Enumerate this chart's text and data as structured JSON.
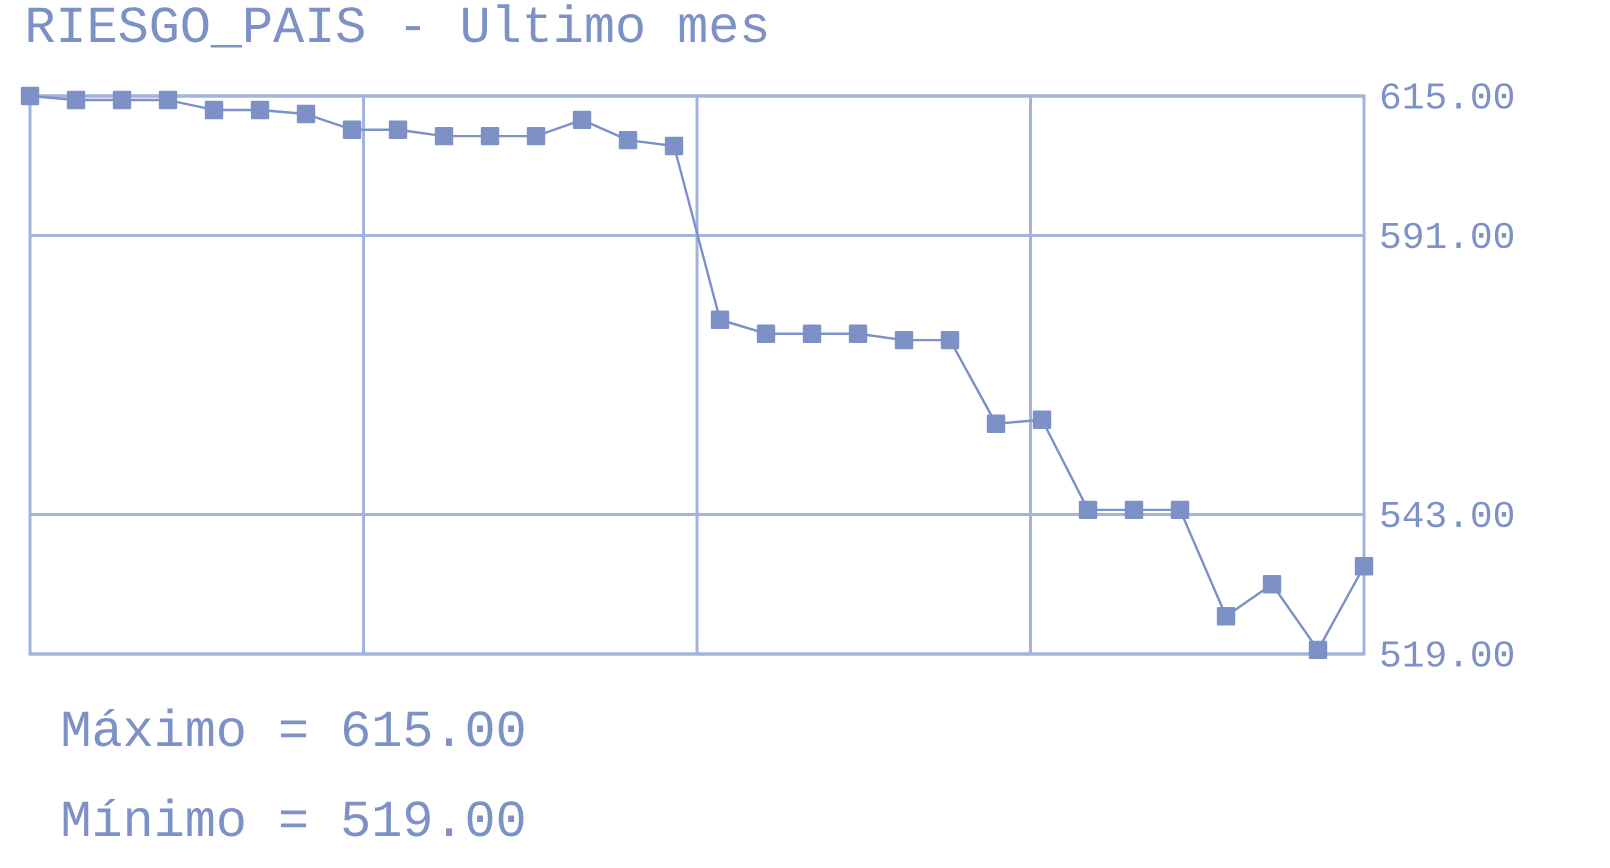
{
  "chart_data": {
    "type": "line",
    "title": "RIESGO_PAIS - Ultimo mes",
    "categories": [
      null,
      null,
      null,
      null,
      null,
      null,
      null,
      null,
      null,
      null,
      null,
      null,
      null,
      null,
      null,
      null,
      null,
      null,
      null,
      null,
      null,
      null,
      null,
      null,
      null,
      null,
      null,
      null,
      null,
      null
    ],
    "values": [
      615,
      614.3,
      614.3,
      614.3,
      612.6,
      612.6,
      611.9,
      609.2,
      609.2,
      608.1,
      608.1,
      608.1,
      610.9,
      607.4,
      606.4,
      576.5,
      574.1,
      574.1,
      574.1,
      573,
      573,
      558.6,
      559.3,
      543.8,
      543.8,
      543.8,
      525.5,
      531,
      519.7,
      534.1
    ],
    "color": "#7d91c6",
    "marker": "square",
    "line_style": "solid",
    "grid": true,
    "ylim": [
      519,
      615
    ],
    "yticks": [
      {
        "value": 615,
        "label": "615.00"
      },
      {
        "value": 591,
        "label": "591.00"
      },
      {
        "value": 543,
        "label": "543.00"
      },
      {
        "value": 519,
        "label": "519.00"
      }
    ],
    "annotations": [
      "Máximo = 615.00",
      "Mínimo = 519.00"
    ]
  }
}
